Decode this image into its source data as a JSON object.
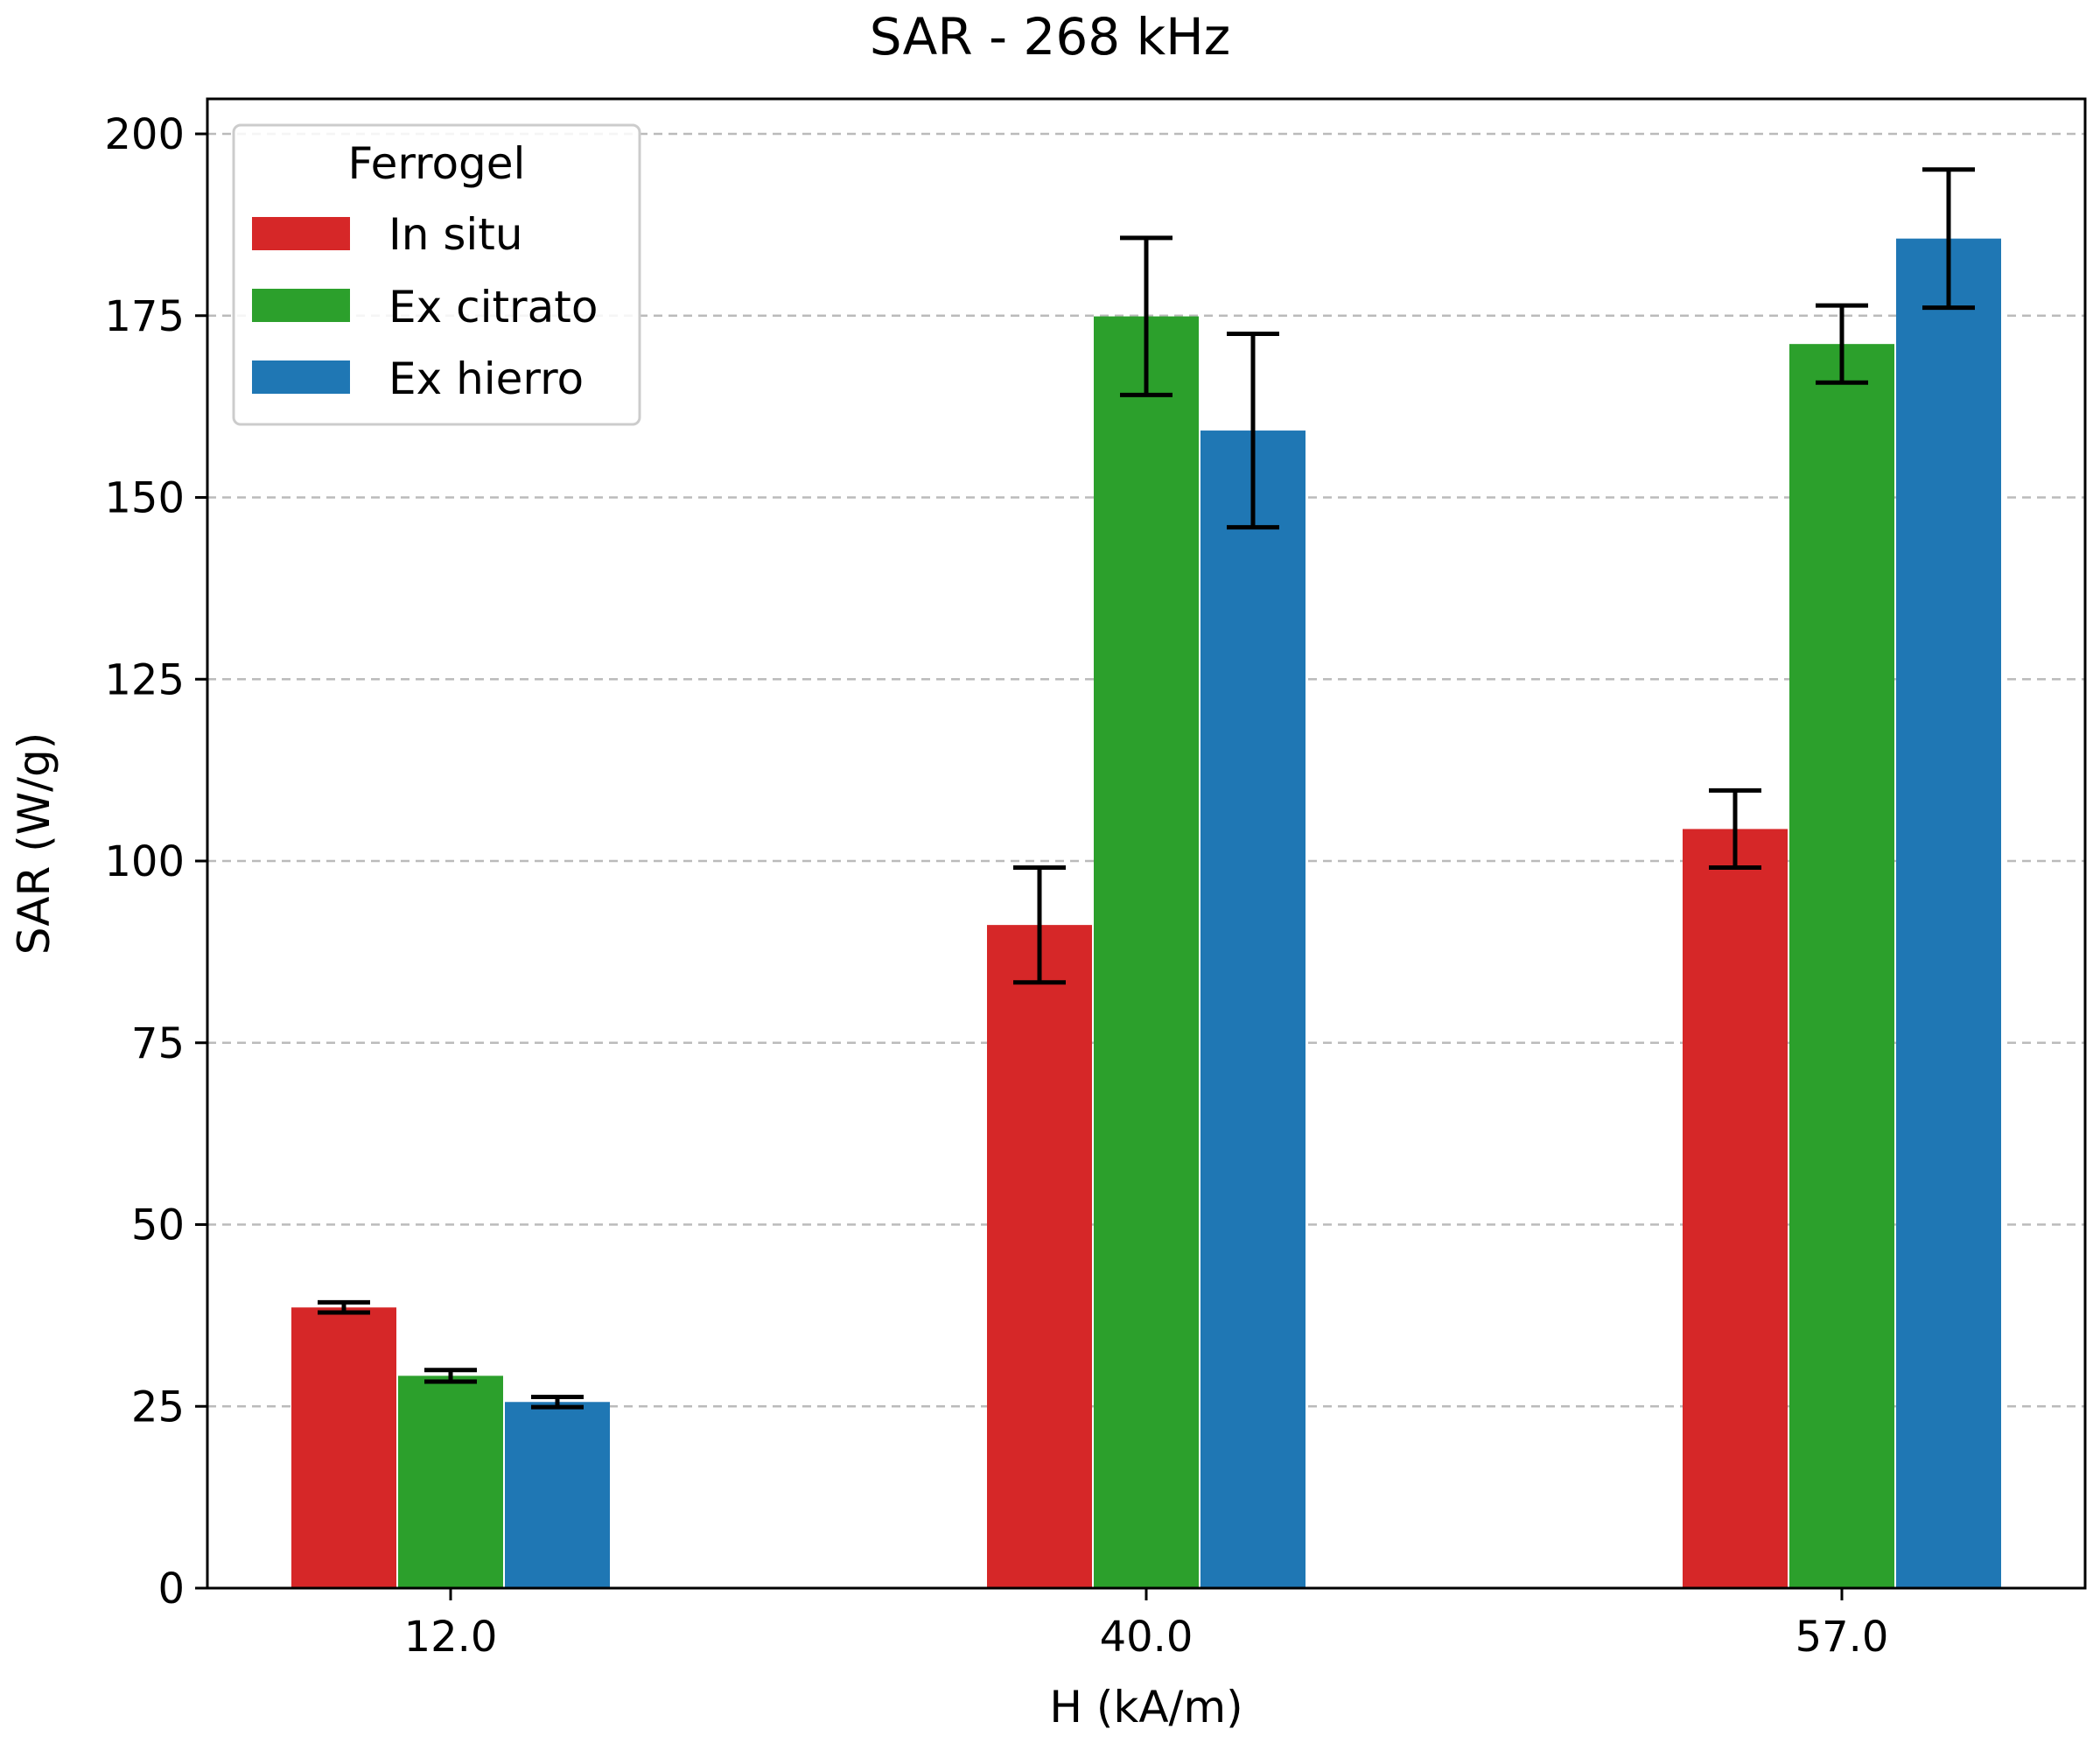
{
  "chart_data": {
    "type": "bar",
    "title": "SAR - 268 kHz",
    "xlabel": "H (kA/m)",
    "ylabel": "SAR (W/g)",
    "categories": [
      "12.0",
      "40.0",
      "57.0"
    ],
    "ylim": [
      0,
      205
    ],
    "yticks": [
      0,
      25,
      50,
      75,
      100,
      125,
      150,
      175,
      200
    ],
    "grid": "y-dashed",
    "legend": {
      "title": "Ferrogel",
      "placement": "top-left"
    },
    "series": [
      {
        "name": "In situ",
        "color": "#d62728",
        "values": [
          38.6,
          91.2,
          104.4
        ],
        "errors": [
          0.7,
          7.9,
          5.3
        ]
      },
      {
        "name": "Ex citrato",
        "color": "#2ca02c",
        "values": [
          29.2,
          174.9,
          171.1
        ],
        "errors": [
          0.8,
          10.8,
          5.3
        ]
      },
      {
        "name": "Ex hierro",
        "color": "#1f77b4",
        "values": [
          25.6,
          159.2,
          185.6
        ],
        "errors": [
          0.7,
          13.3,
          9.5
        ]
      }
    ]
  }
}
